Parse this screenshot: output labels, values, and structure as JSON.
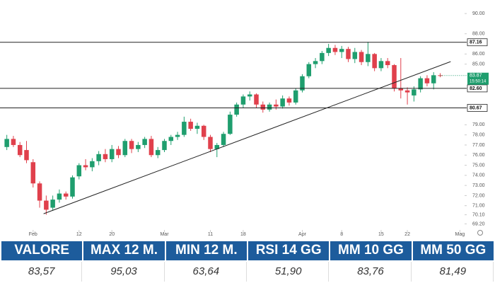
{
  "chart_data": {
    "type": "candlestick",
    "up_color": "#1f9e6e",
    "down_color": "#e0404c",
    "open": [
      76.8,
      77.6,
      77.0,
      76.5,
      75.3,
      73.2,
      71.5,
      70.8,
      71.6,
      72.2,
      71.9,
      73.9,
      75.0,
      74.8,
      75.4,
      76.1,
      75.6,
      76.6,
      76.0,
      77.4,
      76.6,
      77.0,
      77.6,
      76.0,
      76.5,
      77.4,
      77.8,
      78.0,
      79.3,
      78.6,
      78.9,
      77.8,
      76.6,
      77.0,
      78.1,
      80.0,
      81.0,
      81.8,
      82.0,
      81.0,
      80.5,
      81.0,
      80.8,
      81.6,
      81.2,
      82.4,
      83.8,
      85.0,
      85.3,
      86.1,
      86.6,
      86.2,
      86.5,
      85.5,
      86.2,
      85.2,
      86.0,
      84.6,
      85.3,
      84.9,
      82.6,
      82.4,
      81.9,
      82.5,
      83.6,
      83.1,
      83.9
    ],
    "high": [
      78.0,
      77.9,
      77.3,
      77.4,
      75.6,
      73.4,
      72.0,
      72.0,
      72.6,
      72.4,
      74.0,
      75.2,
      75.6,
      75.7,
      76.4,
      76.6,
      77.0,
      76.9,
      77.6,
      77.6,
      77.3,
      77.8,
      77.9,
      76.8,
      77.6,
      78.0,
      78.3,
      79.8,
      79.6,
      79.2,
      79.0,
      78.0,
      77.2,
      78.3,
      80.3,
      81.2,
      82.0,
      82.3,
      82.1,
      81.3,
      81.2,
      81.5,
      81.9,
      81.8,
      82.6,
      84.0,
      85.2,
      85.6,
      86.3,
      87.0,
      86.9,
      86.8,
      86.7,
      86.6,
      86.4,
      87.2,
      86.1,
      85.6,
      85.6,
      85.0,
      85.6,
      82.7,
      82.8,
      83.8,
      83.9,
      84.2,
      84.1
    ],
    "low": [
      76.5,
      76.8,
      75.8,
      75.2,
      72.8,
      70.8,
      70.1,
      70.5,
      71.3,
      71.6,
      71.7,
      73.6,
      74.5,
      74.4,
      75.0,
      75.3,
      75.3,
      75.7,
      75.8,
      76.2,
      76.3,
      76.7,
      75.8,
      75.7,
      76.3,
      77.0,
      77.5,
      77.8,
      78.4,
      78.1,
      77.5,
      76.3,
      75.8,
      76.8,
      78.0,
      79.8,
      80.7,
      81.4,
      80.7,
      80.2,
      80.3,
      80.5,
      80.6,
      80.9,
      81.0,
      82.2,
      83.6,
      84.6,
      85.0,
      85.8,
      85.9,
      85.6,
      85.2,
      85.1,
      84.9,
      84.8,
      84.3,
      84.3,
      84.6,
      82.3,
      81.6,
      81.0,
      81.3,
      82.2,
      82.8,
      82.5,
      83.7
    ],
    "close": [
      77.6,
      77.0,
      76.0,
      75.5,
      73.2,
      71.5,
      70.6,
      71.6,
      72.2,
      71.9,
      73.8,
      75.0,
      74.8,
      75.4,
      76.1,
      75.6,
      76.6,
      76.0,
      77.4,
      76.6,
      77.0,
      77.6,
      76.0,
      76.5,
      77.4,
      77.8,
      78.0,
      79.3,
      78.6,
      78.9,
      77.8,
      76.6,
      77.0,
      78.1,
      80.0,
      81.0,
      81.8,
      82.0,
      81.0,
      80.5,
      81.0,
      80.8,
      81.6,
      81.2,
      82.4,
      83.8,
      85.0,
      85.3,
      86.1,
      86.6,
      86.2,
      86.5,
      85.5,
      86.2,
      85.2,
      86.0,
      84.6,
      85.3,
      84.9,
      82.6,
      82.4,
      82.2,
      82.5,
      83.6,
      83.1,
      83.9,
      83.87
    ],
    "xlim": [
      -0.5,
      69.5
    ],
    "xticks": [
      {
        "value": 4,
        "label": "Feb"
      },
      {
        "value": 11,
        "label": "12"
      },
      {
        "value": 16,
        "label": "20"
      },
      {
        "value": 24,
        "label": "Mar"
      },
      {
        "value": 31,
        "label": "11"
      },
      {
        "value": 36,
        "label": "18"
      },
      {
        "value": 45,
        "label": "Apr"
      },
      {
        "value": 51,
        "label": "8"
      },
      {
        "value": 57,
        "label": "15"
      },
      {
        "value": 61,
        "label": "22"
      },
      {
        "value": 69,
        "label": "Mag"
      }
    ],
    "ylim": [
      68.6,
      90.5
    ],
    "yticks": [
      {
        "value": 90,
        "label": "90.00"
      },
      {
        "value": 88,
        "label": "88.00"
      },
      {
        "value": 86,
        "label": "86.00"
      },
      {
        "value": 85,
        "label": "85.00"
      },
      {
        "value": 79,
        "label": "79.00"
      },
      {
        "value": 78,
        "label": "78.00"
      },
      {
        "value": 77,
        "label": "77.00"
      },
      {
        "value": 76,
        "label": "76.00"
      },
      {
        "value": 75,
        "label": "75.00"
      },
      {
        "value": 74,
        "label": "74.00"
      },
      {
        "value": 73,
        "label": "73.00"
      },
      {
        "value": 72,
        "label": "72.00"
      },
      {
        "value": 71,
        "label": "71.00"
      },
      {
        "value": 70.1,
        "label": "70.10"
      },
      {
        "value": 69.2,
        "label": "69.20"
      }
    ],
    "levels": [
      {
        "value": 87.16,
        "label": "87.16"
      },
      {
        "value": 82.6,
        "label": "82.60"
      },
      {
        "value": 80.67,
        "label": "80.67"
      }
    ],
    "last_price": {
      "value": 83.87,
      "label": "83.87",
      "time": "15:50:14"
    },
    "trendline": {
      "x": [
        5.6,
        67.6
      ],
      "y": [
        70.2,
        85.25
      ]
    }
  },
  "table": {
    "header": [
      "VALORE",
      "MAX 12 M.",
      "MIN 12 M.",
      "RSI 14 GG",
      "MM 10 GG",
      "MM 50 GG"
    ],
    "values": [
      "83,57",
      "95,03",
      "63,64",
      "51,90",
      "83,76",
      "81,49"
    ]
  }
}
